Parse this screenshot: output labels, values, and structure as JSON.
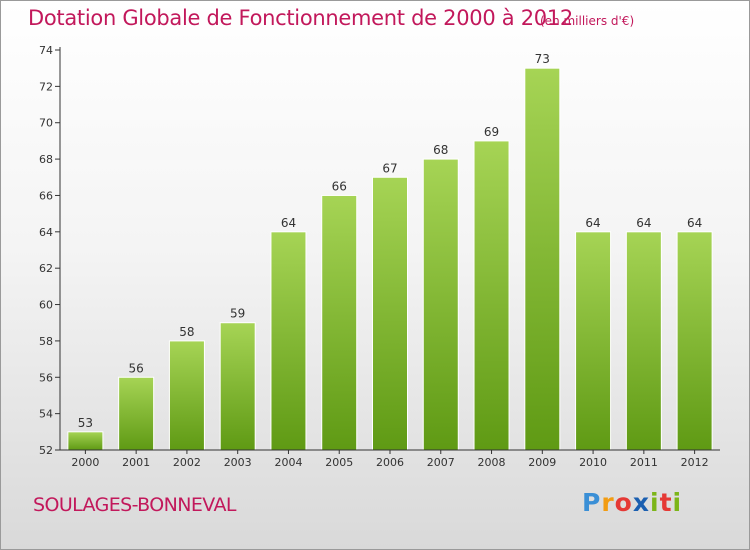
{
  "header": {
    "title": "Dotation Globale de Fonctionnement de 2000 à 2012",
    "unit": "(en milliers d'€)"
  },
  "footer": {
    "commune": "SOULAGES-BONNEVAL",
    "brand": "Proxiti",
    "brand_colors": [
      "#3a8fd6",
      "#f29c12",
      "#e53935",
      "#1b5fb0",
      "#7cb518",
      "#e53935",
      "#7cb518"
    ]
  },
  "chart_data": {
    "type": "bar",
    "categories": [
      "2000",
      "2001",
      "2002",
      "2003",
      "2004",
      "2005",
      "2006",
      "2007",
      "2008",
      "2009",
      "2010",
      "2011",
      "2012"
    ],
    "values": [
      53,
      56,
      58,
      59,
      64,
      66,
      67,
      68,
      69,
      73,
      64,
      64,
      64
    ],
    "data_labels": [
      "53",
      "56",
      "58",
      "59",
      "64",
      "66",
      "67",
      "68",
      "69",
      "73",
      "64",
      "64",
      "64"
    ],
    "ylim": [
      52,
      74
    ],
    "yticks": [
      "52",
      "54",
      "56",
      "58",
      "60",
      "62",
      "64",
      "66",
      "68",
      "70",
      "72",
      "74"
    ],
    "grid": false,
    "colors": {
      "bar_top": "#a6d455",
      "bar_bottom": "#5f9a14",
      "axis": "#333333",
      "text": "#333333"
    }
  }
}
